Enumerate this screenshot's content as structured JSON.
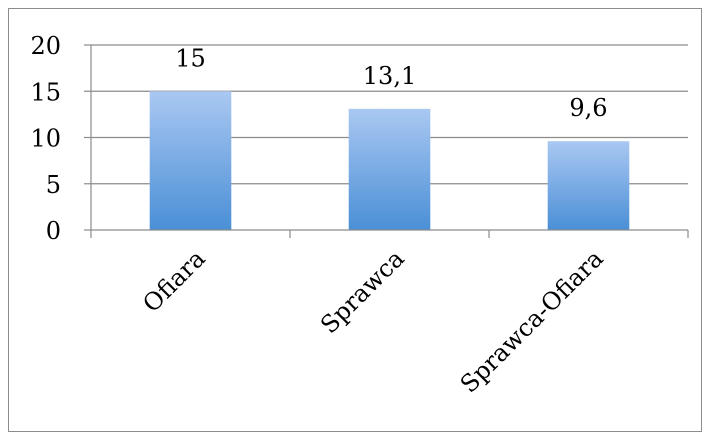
{
  "chart_data": {
    "type": "bar",
    "categories": [
      "Ofiara",
      "Sprawca",
      "Sprawca-Ofiara"
    ],
    "values": [
      15,
      13.1,
      9.6
    ],
    "value_labels": [
      "15",
      "13,1",
      "9,6"
    ],
    "ylim": [
      0,
      20
    ],
    "yticks": [
      0,
      5,
      10,
      15,
      20
    ],
    "grid": true,
    "bar_color_top": "#aac8f2",
    "bar_color_bottom": "#4a8fd6",
    "axis_color": "#8c8c8c"
  }
}
